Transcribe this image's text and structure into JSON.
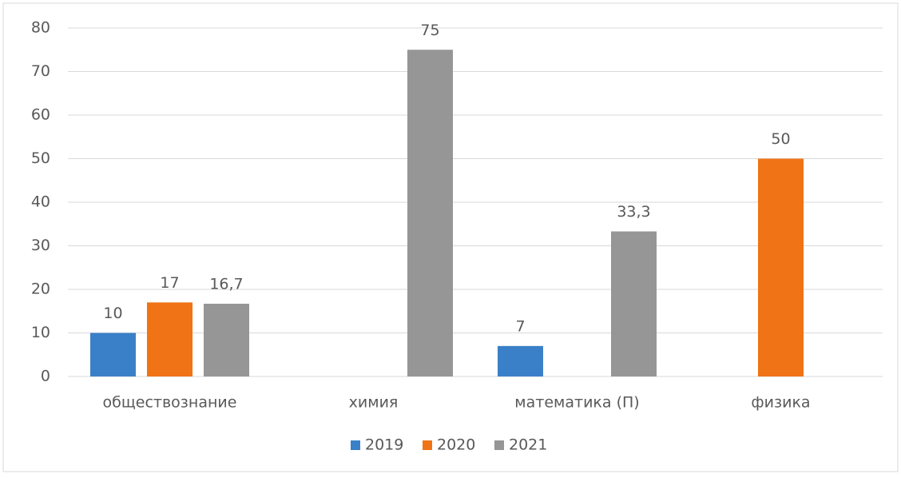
{
  "chart_data": {
    "type": "bar",
    "categories": [
      "обществознание",
      "химия",
      "математика (П)",
      "физика"
    ],
    "series": [
      {
        "name": "2019",
        "color": "#3a80c8",
        "values": [
          10,
          null,
          7,
          null
        ]
      },
      {
        "name": "2020",
        "color": "#f07316",
        "values": [
          17,
          null,
          null,
          50
        ]
      },
      {
        "name": "2021",
        "color": "#969696",
        "values": [
          16.7,
          75,
          33.3,
          null
        ],
        "value_labels": [
          "16,7",
          "75",
          "33,3",
          null
        ]
      }
    ],
    "ylim": [
      0,
      80
    ],
    "yticks": [
      0,
      10,
      20,
      30,
      40,
      50,
      60,
      70,
      80
    ],
    "grid": true,
    "legend": "bottom"
  }
}
